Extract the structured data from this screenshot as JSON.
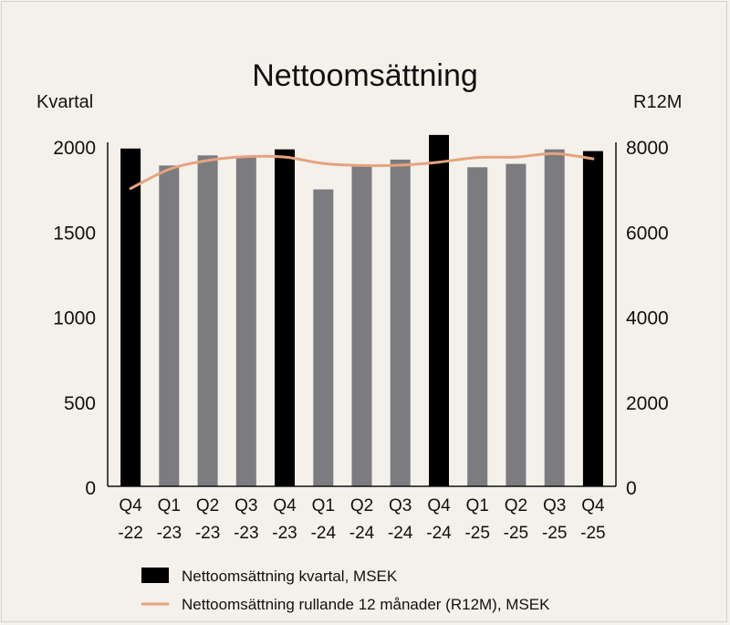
{
  "chart_data": {
    "type": "bar",
    "title": "Nettoomsättning",
    "ylabel_left": "Kvartal",
    "ylabel_right": "R12M",
    "categories": [
      [
        "Q4",
        "-22"
      ],
      [
        "Q1",
        "-23"
      ],
      [
        "Q2",
        "-23"
      ],
      [
        "Q3",
        "-23"
      ],
      [
        "Q4",
        "-23"
      ],
      [
        "Q1",
        "-24"
      ],
      [
        "Q2",
        "-24"
      ],
      [
        "Q3",
        "-24"
      ],
      [
        "Q4",
        "-24"
      ],
      [
        "Q1",
        "-25"
      ],
      [
        "Q2",
        "-25"
      ],
      [
        "Q3",
        "-25"
      ],
      [
        "Q4",
        "-25"
      ]
    ],
    "ylim_left": [
      0,
      2000
    ],
    "yticks_left": [
      "0",
      "500",
      "1000",
      "1500",
      "2000"
    ],
    "ylim_right": [
      0,
      8000
    ],
    "yticks_right": [
      "0",
      "2000",
      "4000",
      "6000",
      "8000"
    ],
    "series": [
      {
        "name": "Nettoomsättning kvartal, MSEK",
        "type": "bar",
        "axis": "left",
        "values": [
          1985,
          1885,
          1945,
          1940,
          1980,
          1745,
          1890,
          1920,
          2065,
          1875,
          1895,
          1980,
          1970
        ],
        "highlight_q4": true
      },
      {
        "name": "Nettoomsättning rullande 12 månader (R12M), MSEK",
        "type": "line",
        "axis": "right",
        "values": [
          7000,
          7450,
          7660,
          7750,
          7740,
          7590,
          7540,
          7550,
          7620,
          7730,
          7740,
          7820,
          7700
        ]
      }
    ],
    "legend": [
      "Nettoomsättning kvartal, MSEK",
      "Nettoomsättning rullande 12 månader (R12M), MSEK"
    ],
    "legend_position": "bottom",
    "grid": false
  },
  "colors": {
    "background": "#f3f1ea",
    "bar_q4": "#000000",
    "bar_other": "#7b7b80",
    "line": "#e6a37e",
    "text": "#111111",
    "axis": "#111111"
  }
}
